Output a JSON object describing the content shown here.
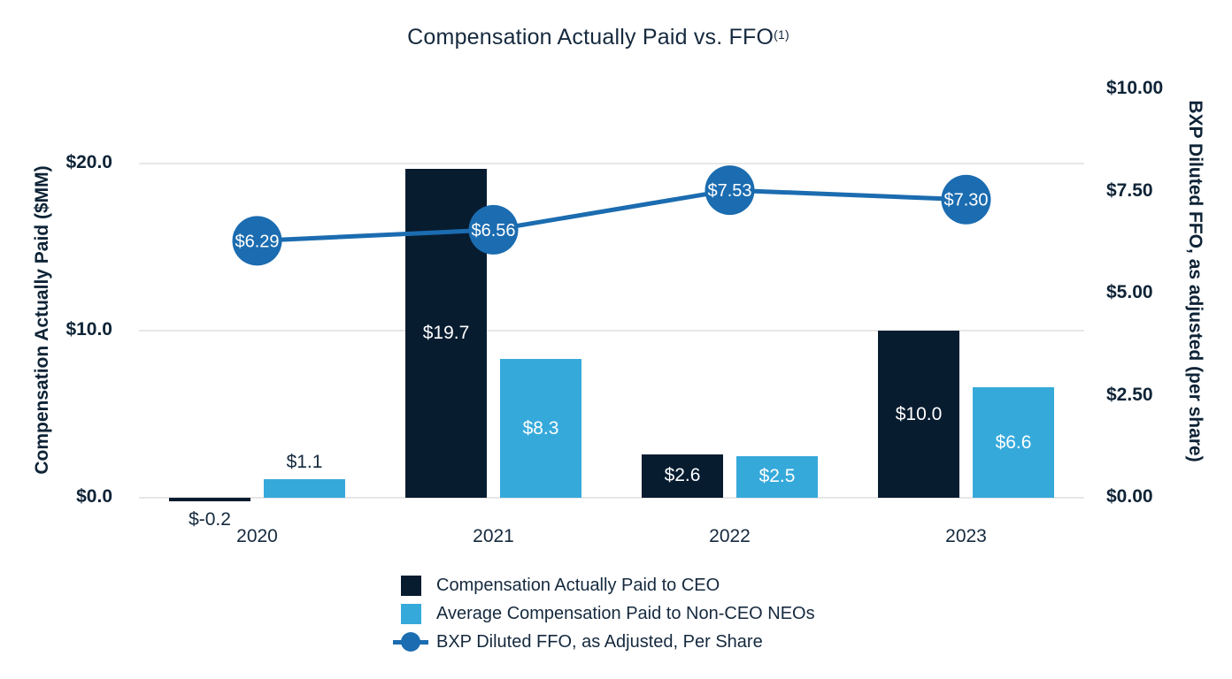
{
  "title": {
    "text": "Compensation Actually Paid vs. FFO",
    "footnote_superscript": "(1)"
  },
  "colors": {
    "ceo_bar": "#081C30",
    "neo_bar": "#36A9DB",
    "ffo_line": "#1B6CB0",
    "grid": "#E7E7E7",
    "text_dark": "#15293E",
    "label_on_bar": "#FFFFFF"
  },
  "legend": {
    "items": [
      {
        "label": "Compensation Actually Paid to CEO",
        "swatch": "square-dark"
      },
      {
        "label": "Average Compensation Paid to Non-CEO NEOs",
        "swatch": "square-light"
      },
      {
        "label": "BXP Diluted FFO, as Adjusted, Per Share",
        "swatch": "line-marker"
      }
    ]
  },
  "chart_data": {
    "type": "bar",
    "title": "Compensation Actually Paid vs. FFO(1)",
    "categories": [
      "2020",
      "2021",
      "2022",
      "2023"
    ],
    "series": [
      {
        "name": "Compensation Actually Paid to CEO",
        "type": "bar",
        "axis": "left",
        "color_key": "ceo_bar",
        "values": [
          -0.2,
          19.7,
          2.6,
          10.0
        ],
        "data_labels": [
          "$-0.2",
          "$19.7",
          "$2.6",
          "$10.0"
        ]
      },
      {
        "name": "Average Compensation Paid to Non-CEO NEOs",
        "type": "bar",
        "axis": "left",
        "color_key": "neo_bar",
        "values": [
          1.1,
          8.3,
          2.5,
          6.6
        ],
        "data_labels": [
          "$1.1",
          "$8.3",
          "$2.5",
          "$6.6"
        ]
      },
      {
        "name": "BXP Diluted FFO, as Adjusted, Per Share",
        "type": "line",
        "axis": "right",
        "color_key": "ffo_line",
        "values": [
          6.29,
          6.56,
          7.53,
          7.3
        ],
        "data_labels": [
          "$6.29",
          "$6.56",
          "$7.53",
          "$7.30"
        ]
      }
    ],
    "left_axis": {
      "label": "Compensation Actually Paid ($MM)",
      "tick_labels": [
        "$0.0",
        "$10.0",
        "$20.0"
      ],
      "tick_values": [
        0,
        10,
        20
      ],
      "range": [
        0,
        20
      ]
    },
    "right_axis": {
      "label": "BXP Diluted FFO, as adjusted (per share)",
      "tick_labels": [
        "$0.00",
        "$2.50",
        "$5.00",
        "$7.50",
        "$10.00"
      ],
      "tick_values": [
        0,
        2.5,
        5,
        7.5,
        10
      ],
      "range": [
        0,
        10
      ]
    },
    "grid": "horizontal",
    "legend_position": "bottom"
  }
}
